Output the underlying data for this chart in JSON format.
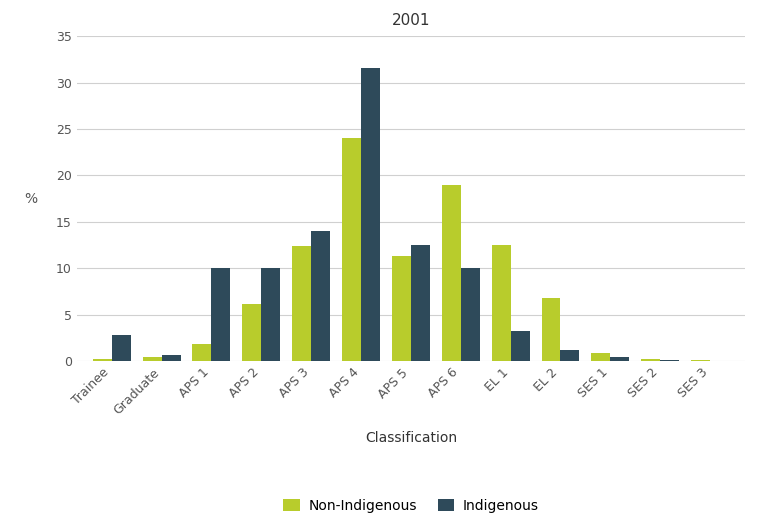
{
  "title": "2001",
  "categories": [
    "Trainee",
    "Graduate",
    "APS 1",
    "APS 2",
    "APS 3",
    "APS 4",
    "APS 5",
    "APS 6",
    "EL 1",
    "EL 2",
    "SES 1",
    "SES 2",
    "SES 3"
  ],
  "non_indigenous": [
    0.2,
    0.4,
    1.8,
    6.2,
    12.4,
    24.0,
    11.3,
    19.0,
    12.5,
    6.8,
    0.9,
    0.25,
    0.1
  ],
  "indigenous": [
    2.8,
    0.7,
    10.0,
    10.0,
    14.0,
    31.6,
    12.5,
    10.0,
    3.3,
    1.2,
    0.4,
    0.15,
    0.05
  ],
  "non_indigenous_color": "#b8cc2c",
  "indigenous_color": "#2e4a5a",
  "xlabel": "Classification",
  "ylabel": "%",
  "ylim": [
    0,
    35
  ],
  "yticks": [
    0,
    5,
    10,
    15,
    20,
    25,
    30,
    35
  ],
  "legend_labels": [
    "Non-Indigenous",
    "Indigenous"
  ],
  "background_color": "#ffffff",
  "grid_color": "#d0d0d0",
  "title_fontsize": 11,
  "axis_label_fontsize": 10,
  "tick_fontsize": 9,
  "legend_fontsize": 10,
  "bar_width": 0.38
}
